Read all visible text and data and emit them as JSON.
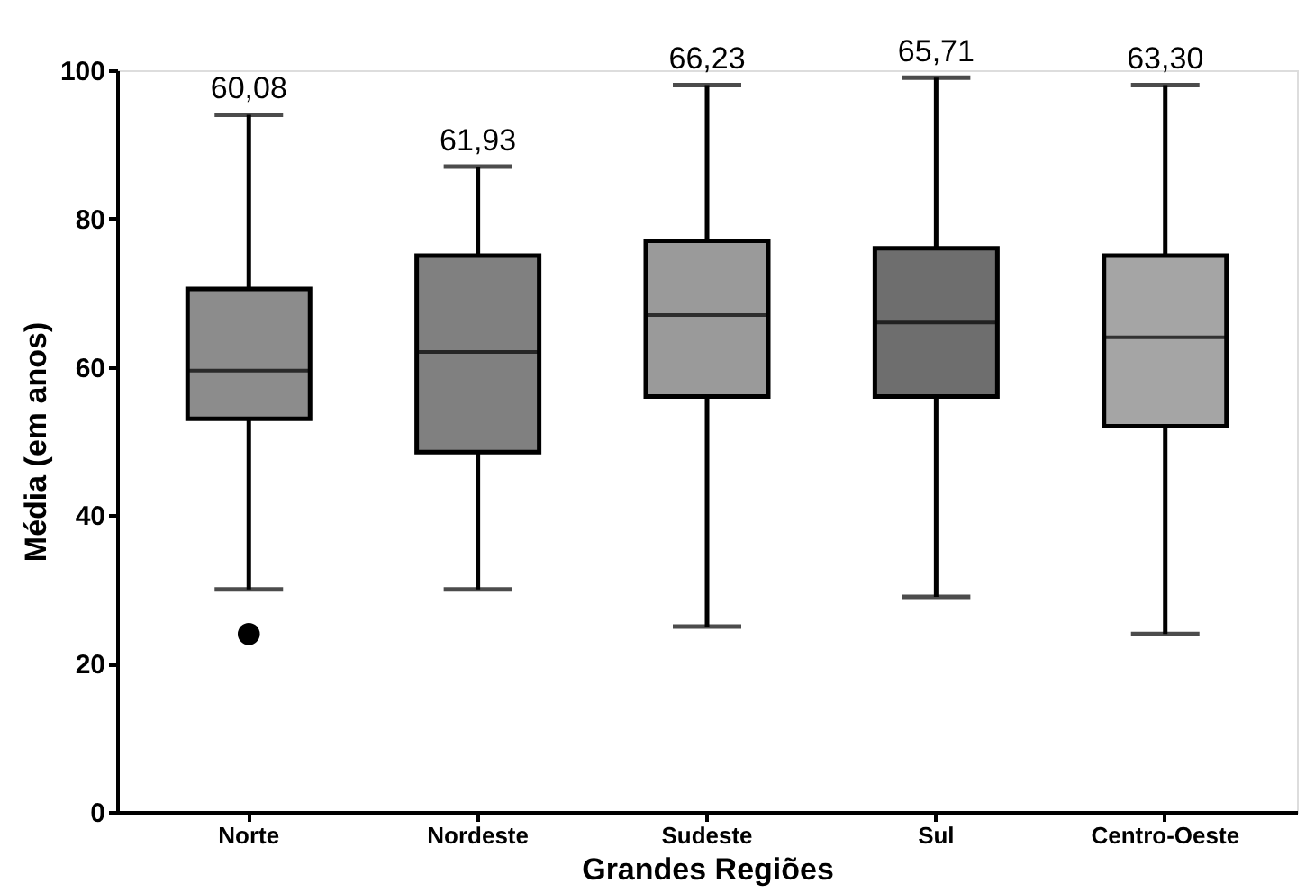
{
  "chart_data": {
    "type": "box",
    "xlabel": "Grandes Regiões",
    "ylabel": "Média (em anos)",
    "categories": [
      "Norte",
      "Nordeste",
      "Sudeste",
      "Sul",
      "Centro-Oeste"
    ],
    "boxes": [
      {
        "low": 30,
        "q1": 53,
        "median": 59.5,
        "q3": 70.5,
        "high": 94,
        "outliers": [
          24
        ]
      },
      {
        "low": 30,
        "q1": 48.5,
        "median": 62,
        "q3": 75,
        "high": 87
      },
      {
        "low": 25,
        "q1": 56,
        "median": 67,
        "q3": 77,
        "high": 98
      },
      {
        "low": 29,
        "q1": 56,
        "median": 66,
        "q3": 76,
        "high": 99
      },
      {
        "low": 24,
        "q1": 52,
        "median": 64,
        "q3": 75,
        "high": 98
      }
    ],
    "colors": [
      "#8c8c8c",
      "#808080",
      "#9a9a9a",
      "#6e6e6e",
      "#a5a5a5"
    ],
    "annotations": [
      "60,08",
      "61,93",
      "66,23",
      "65,71",
      "63,30"
    ],
    "ylim": [
      0,
      100
    ],
    "yticks": [
      0,
      20,
      40,
      60,
      80,
      100
    ],
    "grid": false
  }
}
